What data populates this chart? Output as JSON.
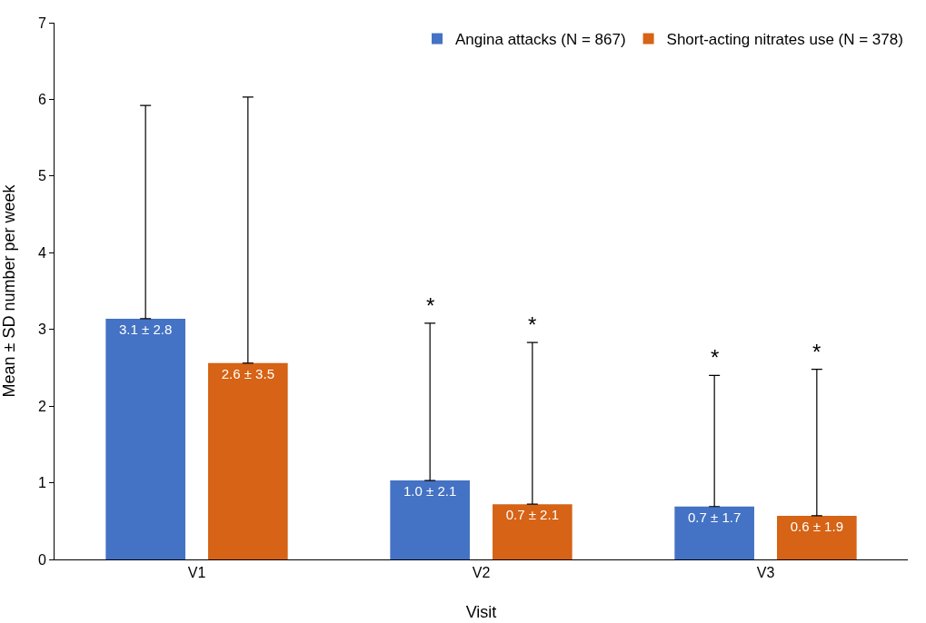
{
  "chart_data": {
    "type": "bar",
    "xlabel": "Visit",
    "ylabel": "Mean ± SD number per week",
    "categories": [
      "V1",
      "V2",
      "V3"
    ],
    "series": [
      {
        "name": "Angina attacks (N = 867)",
        "color": "#4472c4",
        "values": [
          3.14,
          1.03,
          0.69
        ],
        "value_labels": [
          "3.1 ± 2.8",
          "1.0 ± 2.1",
          "0.7 ± 1.7"
        ],
        "errors": [
          [
            3.14,
            5.92
          ],
          [
            1.03,
            3.08
          ],
          [
            0.69,
            2.4
          ]
        ]
      },
      {
        "name": "Short-acting nitrates use (N = 378)",
        "color": "#d66316",
        "values": [
          2.56,
          0.72,
          0.57
        ],
        "value_labels": [
          "2.6 ± 3.5",
          "0.7 ± 2.1",
          "0.6 ± 1.9"
        ],
        "errors": [
          [
            2.56,
            6.03
          ],
          [
            0.72,
            2.83
          ],
          [
            0.57,
            2.48
          ]
        ]
      }
    ],
    "annotations": [
      "*",
      "*",
      "*",
      "*"
    ],
    "ylim": [
      0,
      7
    ],
    "yticks": [
      0,
      1,
      2,
      3,
      4,
      5,
      6,
      7
    ],
    "grid": false,
    "legend": "top right"
  }
}
